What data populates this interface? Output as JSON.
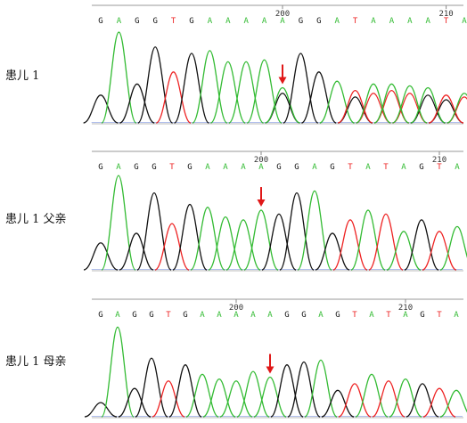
{
  "panels": [
    {
      "label": "患儿 1",
      "bases": [
        "G",
        "A",
        "G",
        "G",
        "T",
        "G",
        "A",
        "A",
        "A",
        "A",
        "A",
        "G",
        "G",
        "A",
        "T",
        "A",
        "A",
        "A",
        "A",
        "T",
        "A"
      ],
      "pos_labels": [
        {
          "index": 10,
          "text": "200"
        },
        {
          "index": 19,
          "text": "210"
        }
      ],
      "arrow_index": 10,
      "peaks": [
        {
          "b": "G",
          "h": 0.3
        },
        {
          "b": "A",
          "h": 0.98
        },
        {
          "b": "G",
          "h": 0.42
        },
        {
          "b": "G",
          "h": 0.82
        },
        {
          "b": "T",
          "h": 0.55
        },
        {
          "b": "G",
          "h": 0.75
        },
        {
          "b": "A",
          "h": 0.78
        },
        {
          "b": "A",
          "h": 0.66
        },
        {
          "b": "A",
          "h": 0.66
        },
        {
          "b": "A",
          "h": 0.68
        },
        {
          "b": "A",
          "h": 0.38
        },
        {
          "b": "G",
          "h": 0.75
        },
        {
          "b": "G",
          "h": 0.55
        },
        {
          "b": "A",
          "h": 0.45
        },
        {
          "b": "T",
          "h": 0.35
        },
        {
          "b": "A",
          "h": 0.42
        },
        {
          "b": "A",
          "h": 0.42
        },
        {
          "b": "A",
          "h": 0.4
        },
        {
          "b": "A",
          "h": 0.38
        },
        {
          "b": "T",
          "h": 0.3
        },
        {
          "b": "A",
          "h": 0.32
        }
      ],
      "secondary_peaks": [
        {
          "index": 10,
          "b": "G",
          "h": 0.32
        },
        {
          "index": 14,
          "b": "G",
          "h": 0.28
        },
        {
          "index": 15,
          "b": "T",
          "h": 0.32
        },
        {
          "index": 16,
          "b": "T",
          "h": 0.35
        },
        {
          "index": 17,
          "b": "T",
          "h": 0.32
        },
        {
          "index": 18,
          "b": "G",
          "h": 0.3
        },
        {
          "index": 19,
          "b": "G",
          "h": 0.25
        },
        {
          "index": 20,
          "b": "T",
          "h": 0.28
        }
      ]
    },
    {
      "label": "患儿 1 父亲",
      "bases": [
        "G",
        "A",
        "G",
        "G",
        "T",
        "G",
        "A",
        "A",
        "A",
        "A",
        "G",
        "G",
        "A",
        "G",
        "T",
        "A",
        "T",
        "A",
        "G",
        "T",
        "A"
      ],
      "pos_labels": [
        {
          "index": 9,
          "text": "200"
        },
        {
          "index": 19,
          "text": "210"
        }
      ],
      "arrow_index": 9,
      "peaks": [
        {
          "b": "G",
          "h": 0.28
        },
        {
          "b": "A",
          "h": 0.98
        },
        {
          "b": "G",
          "h": 0.38
        },
        {
          "b": "G",
          "h": 0.8
        },
        {
          "b": "T",
          "h": 0.48
        },
        {
          "b": "G",
          "h": 0.68
        },
        {
          "b": "A",
          "h": 0.65
        },
        {
          "b": "A",
          "h": 0.55
        },
        {
          "b": "A",
          "h": 0.52
        },
        {
          "b": "A",
          "h": 0.62
        },
        {
          "b": "G",
          "h": 0.58
        },
        {
          "b": "G",
          "h": 0.8
        },
        {
          "b": "A",
          "h": 0.82
        },
        {
          "b": "G",
          "h": 0.38
        },
        {
          "b": "T",
          "h": 0.52
        },
        {
          "b": "A",
          "h": 0.62
        },
        {
          "b": "T",
          "h": 0.58
        },
        {
          "b": "A",
          "h": 0.4
        },
        {
          "b": "G",
          "h": 0.52
        },
        {
          "b": "T",
          "h": 0.4
        },
        {
          "b": "A",
          "h": 0.45
        }
      ],
      "secondary_peaks": []
    },
    {
      "label": "患儿 1 母亲",
      "bases": [
        "G",
        "A",
        "G",
        "G",
        "T",
        "G",
        "A",
        "A",
        "A",
        "A",
        "A",
        "G",
        "G",
        "A",
        "G",
        "T",
        "A",
        "T",
        "A",
        "G",
        "T",
        "A"
      ],
      "pos_labels": [
        {
          "index": 8,
          "text": "200"
        },
        {
          "index": 18,
          "text": "210"
        }
      ],
      "arrow_index": 10,
      "peaks": [
        {
          "b": "G",
          "h": 0.15
        },
        {
          "b": "A",
          "h": 0.95
        },
        {
          "b": "G",
          "h": 0.3
        },
        {
          "b": "G",
          "h": 0.62
        },
        {
          "b": "T",
          "h": 0.38
        },
        {
          "b": "G",
          "h": 0.55
        },
        {
          "b": "A",
          "h": 0.45
        },
        {
          "b": "A",
          "h": 0.4
        },
        {
          "b": "A",
          "h": 0.38
        },
        {
          "b": "A",
          "h": 0.48
        },
        {
          "b": "A",
          "h": 0.42
        },
        {
          "b": "G",
          "h": 0.55
        },
        {
          "b": "G",
          "h": 0.58
        },
        {
          "b": "A",
          "h": 0.6
        },
        {
          "b": "G",
          "h": 0.28
        },
        {
          "b": "T",
          "h": 0.35
        },
        {
          "b": "A",
          "h": 0.45
        },
        {
          "b": "T",
          "h": 0.38
        },
        {
          "b": "A",
          "h": 0.4
        },
        {
          "b": "G",
          "h": 0.35
        },
        {
          "b": "T",
          "h": 0.3
        },
        {
          "b": "A",
          "h": 0.28
        }
      ],
      "secondary_peaks": []
    }
  ],
  "base_colors": {
    "A": "#33bb33",
    "G": "#111111",
    "T": "#ee2222",
    "C": "#2244dd"
  },
  "arrow_color": "#e01818"
}
